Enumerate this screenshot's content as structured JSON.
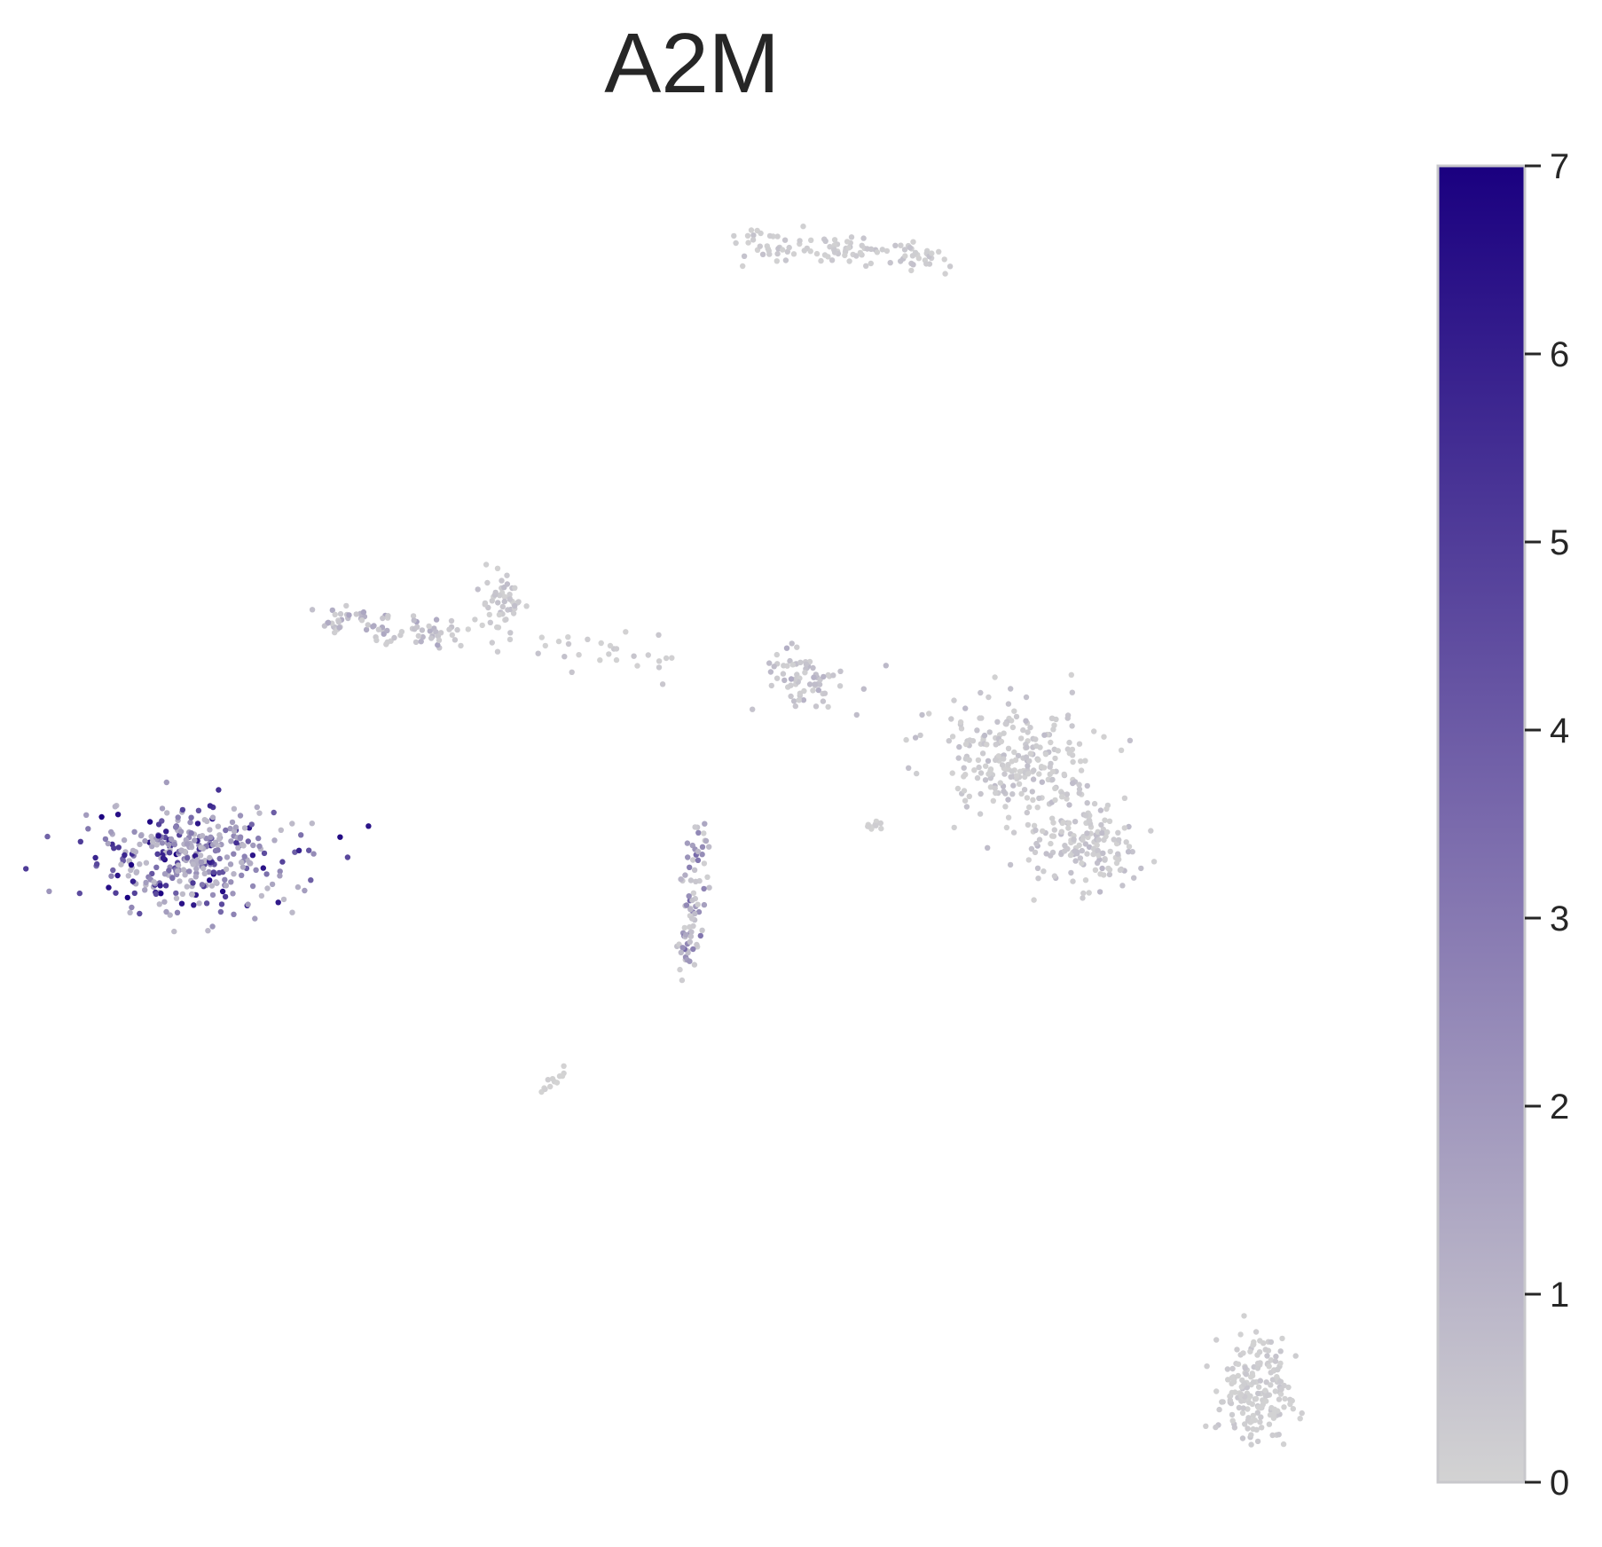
{
  "chart_data": {
    "type": "scatter",
    "title": "A2M",
    "xlabel": "",
    "ylabel": "",
    "grid": false,
    "axes_visible": false,
    "colorbar": {
      "min": 0,
      "max": 7,
      "ticks": [
        "0",
        "1",
        "2",
        "3",
        "4",
        "5",
        "6",
        "7"
      ],
      "color_low": "#d3d3d3",
      "color_high": "#1a0080"
    },
    "clusters": [
      {
        "shape": "band",
        "from": [
          830,
          272
        ],
        "to": [
          1062,
          290
        ],
        "spread": 9,
        "count": 110,
        "expression": [
          0.05,
          0.6
        ]
      },
      {
        "shape": "band",
        "from": [
          370,
          697
        ],
        "to": [
          510,
          718
        ],
        "spread": 10,
        "count": 80,
        "expression": [
          0.15,
          1.6
        ]
      },
      {
        "shape": "blob",
        "center": [
          565,
          672
        ],
        "spread": [
          24,
          30
        ],
        "count": 45,
        "expression": [
          0.05,
          0.8
        ]
      },
      {
        "shape": "band",
        "from": [
          520,
          705
        ],
        "to": [
          760,
          750
        ],
        "spread": 14,
        "count": 35,
        "expression": [
          0.02,
          0.6
        ]
      },
      {
        "shape": "blob",
        "center": [
          905,
          765
        ],
        "spread": [
          42,
          32
        ],
        "count": 70,
        "expression": [
          0.1,
          1.3
        ]
      },
      {
        "shape": "blob",
        "center": [
          1140,
          860
        ],
        "spread": [
          80,
          60
        ],
        "count": 240,
        "expression": [
          0.05,
          0.8
        ]
      },
      {
        "shape": "blob",
        "center": [
          1220,
          955
        ],
        "spread": [
          62,
          42
        ],
        "count": 150,
        "expression": [
          0.05,
          0.9
        ]
      },
      {
        "shape": "blob",
        "center": [
          985,
          930
        ],
        "spread": [
          12,
          5
        ],
        "count": 10,
        "expression": [
          0.0,
          0.2
        ]
      },
      {
        "shape": "blob",
        "center": [
          215,
          968
        ],
        "spread": [
          105,
          52
        ],
        "count": 360,
        "expression": [
          0.8,
          7.0
        ]
      },
      {
        "shape": "band",
        "from": [
          785,
          925
        ],
        "to": [
          775,
          1095
        ],
        "spread": 12,
        "count": 80,
        "expression": [
          0.1,
          3.5
        ]
      },
      {
        "shape": "band",
        "from": [
          608,
          1228
        ],
        "to": [
          640,
          1205
        ],
        "spread": 4,
        "count": 12,
        "expression": [
          0.0,
          0.2
        ]
      },
      {
        "shape": "blob",
        "center": [
          1415,
          1570
        ],
        "spread": [
          38,
          55
        ],
        "count": 190,
        "expression": [
          0.02,
          0.5
        ]
      }
    ]
  }
}
